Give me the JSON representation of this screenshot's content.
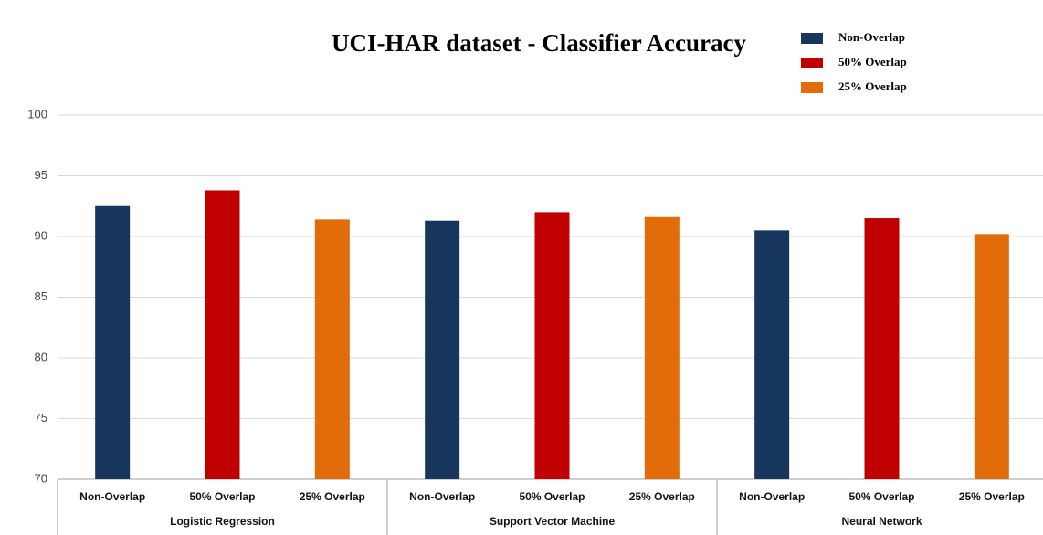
{
  "chart_data": {
    "type": "bar",
    "title": "UCI-HAR dataset - Classifier Accuracy",
    "categories": [
      "Logistic Regression",
      "Support Vector Machine",
      "Neural Network"
    ],
    "series": [
      {
        "name": "Non-Overlap",
        "color": "#17365d",
        "values": [
          92.5,
          91.3,
          90.5
        ]
      },
      {
        "name": "50% Overlap",
        "color": "#c00000",
        "values": [
          93.8,
          92.0,
          91.5
        ]
      },
      {
        "name": "25% Overlap",
        "color": "#e36c0a",
        "values": [
          91.4,
          91.6,
          90.2
        ]
      }
    ],
    "ylim": [
      70,
      100
    ],
    "yticks": [
      70,
      75,
      80,
      85,
      90,
      95,
      100
    ],
    "grid": true,
    "legend": "upper right"
  }
}
